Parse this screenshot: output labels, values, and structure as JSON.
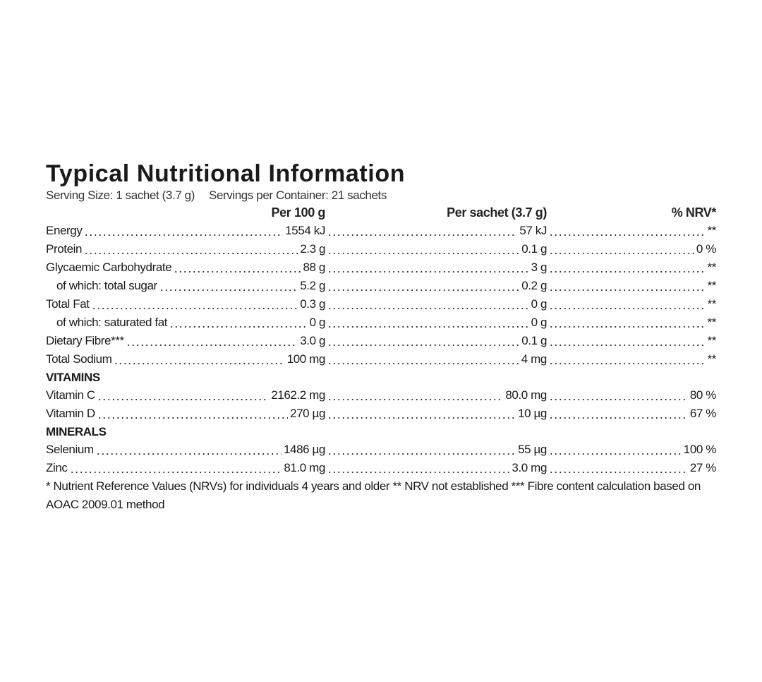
{
  "title": "Typical Nutritional Information",
  "serving_size": "Serving Size: 1 sachet (3.7 g)",
  "servings_per_container": "Servings per Container: 21 sachets",
  "columns": [
    "Per 100 g",
    "Per sachet (3.7 g)",
    "% NRV*"
  ],
  "rows": [
    {
      "label": "Energy",
      "per_100g": "1554 kJ",
      "per_sachet": "57 kJ",
      "nrv": "**"
    },
    {
      "label": "Protein",
      "per_100g": "2.3 g",
      "per_sachet": "0.1 g",
      "nrv": "0 %"
    },
    {
      "label": "Glycaemic Carbohydrate",
      "per_100g": "88 g",
      "per_sachet": "3 g",
      "nrv": "**",
      "sub_rows": [
        {
          "label": "of which: total sugar",
          "per_100g": "5.2 g",
          "per_sachet": "0.2 g",
          "nrv": "**"
        }
      ]
    },
    {
      "label": "Total Fat",
      "per_100g": "0.3 g",
      "per_sachet": "0 g",
      "nrv": "**",
      "sub_rows": [
        {
          "label": "of which: saturated fat",
          "per_100g": "0 g",
          "per_sachet": "0 g",
          "nrv": "**"
        }
      ]
    },
    {
      "label": "Dietary Fibre***",
      "per_100g": "3.0 g",
      "per_sachet": "0.1 g",
      "nrv": "**"
    },
    {
      "label": "Total Sodium",
      "per_100g": "100 mg",
      "per_sachet": "4 mg",
      "nrv": "**"
    }
  ],
  "sections": [
    {
      "heading": "VITAMINS",
      "rows": [
        {
          "label": "Vitamin C",
          "per_100g": "2162.2 mg",
          "per_sachet": "80.0 mg",
          "nrv": "80 %"
        },
        {
          "label": "Vitamin D",
          "per_100g": "270 µg",
          "per_sachet": "10 µg",
          "nrv": "67 %"
        }
      ]
    },
    {
      "heading": "MINERALS",
      "rows": [
        {
          "label": "Selenium",
          "per_100g": "1486 µg",
          "per_sachet": "55 µg",
          "nrv": "100 %"
        },
        {
          "label": "Zinc",
          "per_100g": "81.0 mg",
          "per_sachet": "3.0 mg",
          "nrv": "27 %"
        }
      ]
    }
  ],
  "footnote": "* Nutrient Reference Values (NRVs) for individuals 4 years and older ** NRV not established *** Fibre content calculation based on AOAC 2009.01 method"
}
